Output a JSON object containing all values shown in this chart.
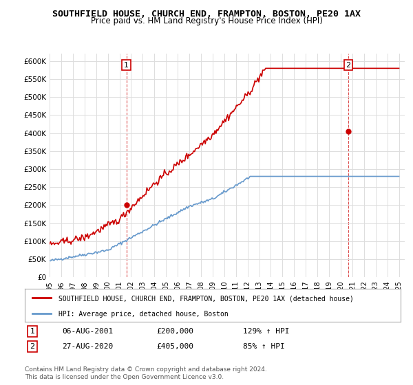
{
  "title": "SOUTHFIELD HOUSE, CHURCH END, FRAMPTON, BOSTON, PE20 1AX",
  "subtitle": "Price paid vs. HM Land Registry's House Price Index (HPI)",
  "title_fontsize": 10,
  "subtitle_fontsize": 9,
  "ylim": [
    0,
    620000
  ],
  "yticks": [
    0,
    50000,
    100000,
    150000,
    200000,
    250000,
    300000,
    350000,
    400000,
    450000,
    500000,
    550000,
    600000
  ],
  "ytick_labels": [
    "£0",
    "£50K",
    "£100K",
    "£150K",
    "£200K",
    "£250K",
    "£300K",
    "£350K",
    "£400K",
    "£450K",
    "£500K",
    "£550K",
    "£600K"
  ],
  "xlim_start": 1995.5,
  "xlim_end": 2025.5,
  "xticks": [
    1995,
    1996,
    1997,
    1998,
    1999,
    2000,
    2001,
    2002,
    2003,
    2004,
    2005,
    2006,
    2007,
    2008,
    2009,
    2010,
    2011,
    2012,
    2013,
    2014,
    2015,
    2016,
    2017,
    2018,
    2019,
    2020,
    2021,
    2022,
    2023,
    2024,
    2025
  ],
  "sale1_x": 2001.6,
  "sale1_y": 200000,
  "sale1_label": "1",
  "sale1_date": "06-AUG-2001",
  "sale1_price": "£200,000",
  "sale1_hpi": "129% ↑ HPI",
  "sale2_x": 2020.65,
  "sale2_y": 405000,
  "sale2_label": "2",
  "sale2_date": "27-AUG-2020",
  "sale2_price": "£405,000",
  "sale2_hpi": "85% ↑ HPI",
  "hpi_color": "#6699cc",
  "price_color": "#cc0000",
  "marker_color": "#cc0000",
  "grid_color": "#dddddd",
  "background_color": "#ffffff",
  "legend_label_price": "SOUTHFIELD HOUSE, CHURCH END, FRAMPTON, BOSTON, PE20 1AX (detached house)",
  "legend_label_hpi": "HPI: Average price, detached house, Boston",
  "footer1": "Contains HM Land Registry data © Crown copyright and database right 2024.",
  "footer2": "This data is licensed under the Open Government Licence v3.0."
}
